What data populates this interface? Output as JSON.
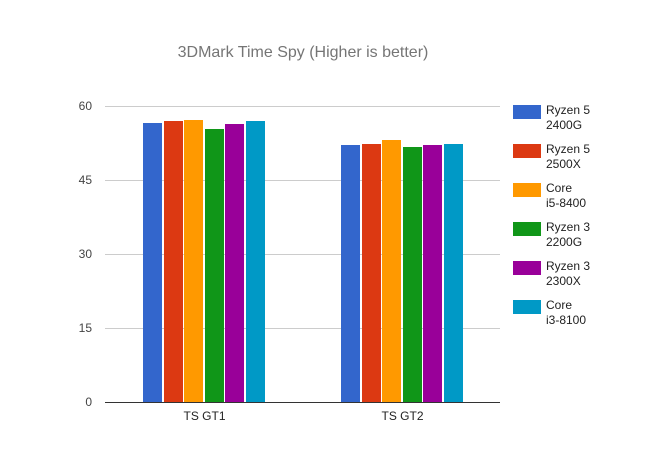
{
  "chart_data": {
    "type": "bar",
    "title": "3DMark Time Spy (Higher is better)",
    "xlabel": "",
    "ylabel": "",
    "ylim": [
      0,
      60
    ],
    "yticks": [
      0,
      15,
      30,
      45,
      60
    ],
    "grid": true,
    "legend_position": "right",
    "categories": [
      "TS GT1",
      "TS GT2"
    ],
    "series": [
      {
        "name": "Ryzen 5 2400G",
        "color": "#3366cc",
        "values": [
          56.6,
          52.1
        ]
      },
      {
        "name": "Ryzen 5 2500X",
        "color": "#dc3912",
        "values": [
          57.0,
          52.2
        ]
      },
      {
        "name": "Core i5-8400",
        "color": "#ff9900",
        "values": [
          57.2,
          53.1
        ]
      },
      {
        "name": "Ryzen 3 2200G",
        "color": "#109618",
        "values": [
          55.3,
          51.7
        ]
      },
      {
        "name": "Ryzen 3 2300X",
        "color": "#990099",
        "values": [
          56.4,
          52.1
        ]
      },
      {
        "name": "Core i3-8100",
        "color": "#0099c6",
        "values": [
          57.0,
          52.2
        ]
      }
    ]
  },
  "legend": [
    {
      "line1": "Ryzen 5",
      "line2": "2400G"
    },
    {
      "line1": "Ryzen 5",
      "line2": "2500X"
    },
    {
      "line1": "Core",
      "line2": "i5-8400"
    },
    {
      "line1": "Ryzen 3",
      "line2": "2200G"
    },
    {
      "line1": "Ryzen 3",
      "line2": "2300X"
    },
    {
      "line1": "Core",
      "line2": "i3-8100"
    }
  ]
}
